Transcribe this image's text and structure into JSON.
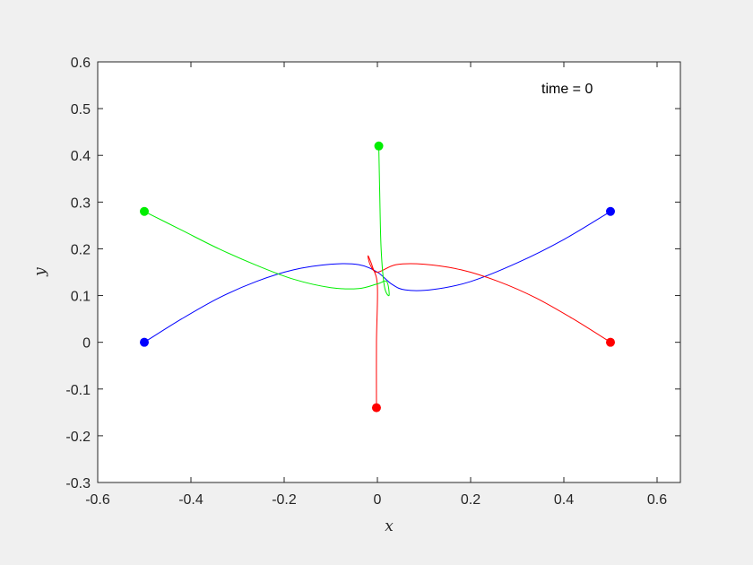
{
  "chart_data": {
    "type": "line",
    "title": "",
    "xlabel": "x",
    "ylabel": "y",
    "xlim": [
      -0.6,
      0.65
    ],
    "ylim": [
      -0.3,
      0.6
    ],
    "xticks": [
      -0.6,
      -0.4,
      -0.2,
      0,
      0.2,
      0.4,
      0.6
    ],
    "yticks": [
      -0.3,
      -0.2,
      -0.1,
      0,
      0.1,
      0.2,
      0.3,
      0.4,
      0.5,
      0.6
    ],
    "xtick_labels": [
      "-0.6",
      "-0.4",
      "-0.2",
      "0",
      "0.2",
      "0.4",
      "0.6"
    ],
    "ytick_labels": [
      "-0.3",
      "-0.2",
      "-0.1",
      "0",
      "0.1",
      "0.2",
      "0.3",
      "0.4",
      "0.5",
      "0.6"
    ],
    "grid": false,
    "annotation": "time = 0",
    "series": [
      {
        "color": "#0000ff",
        "x": [
          -0.5,
          -0.42,
          -0.34,
          -0.26,
          -0.18,
          -0.1,
          -0.04,
          0.0,
          0.03,
          0.06,
          0.12,
          0.2,
          0.3,
          0.4,
          0.5
        ],
        "y": [
          0.0,
          0.05,
          0.095,
          0.13,
          0.155,
          0.167,
          0.166,
          0.15,
          0.125,
          0.112,
          0.113,
          0.13,
          0.17,
          0.22,
          0.28
        ],
        "start": [
          -0.5,
          0.0
        ],
        "end": [
          0.5,
          0.28
        ]
      },
      {
        "color": "#ff0000",
        "x": [
          0.5,
          0.42,
          0.34,
          0.26,
          0.18,
          0.1,
          0.04,
          0.0,
          -0.015,
          -0.02,
          -0.01,
          0.0,
          -0.002,
          -0.002
        ],
        "y": [
          0.0,
          0.05,
          0.095,
          0.13,
          0.155,
          0.167,
          0.166,
          0.15,
          0.165,
          0.185,
          0.16,
          0.12,
          0.0,
          -0.14
        ],
        "start": [
          0.5,
          0.0
        ],
        "end": [
          -0.002,
          -0.14
        ]
      },
      {
        "color": "#00ee00",
        "x": [
          -0.5,
          -0.42,
          -0.34,
          -0.26,
          -0.18,
          -0.1,
          -0.04,
          0.0,
          0.02,
          0.025,
          0.015,
          0.008,
          0.005,
          0.003
        ],
        "y": [
          0.28,
          0.24,
          0.2,
          0.165,
          0.135,
          0.117,
          0.115,
          0.125,
          0.13,
          0.1,
          0.12,
          0.2,
          0.32,
          0.42
        ],
        "start": [
          -0.5,
          0.28
        ],
        "end": [
          0.003,
          0.42
        ]
      }
    ]
  }
}
